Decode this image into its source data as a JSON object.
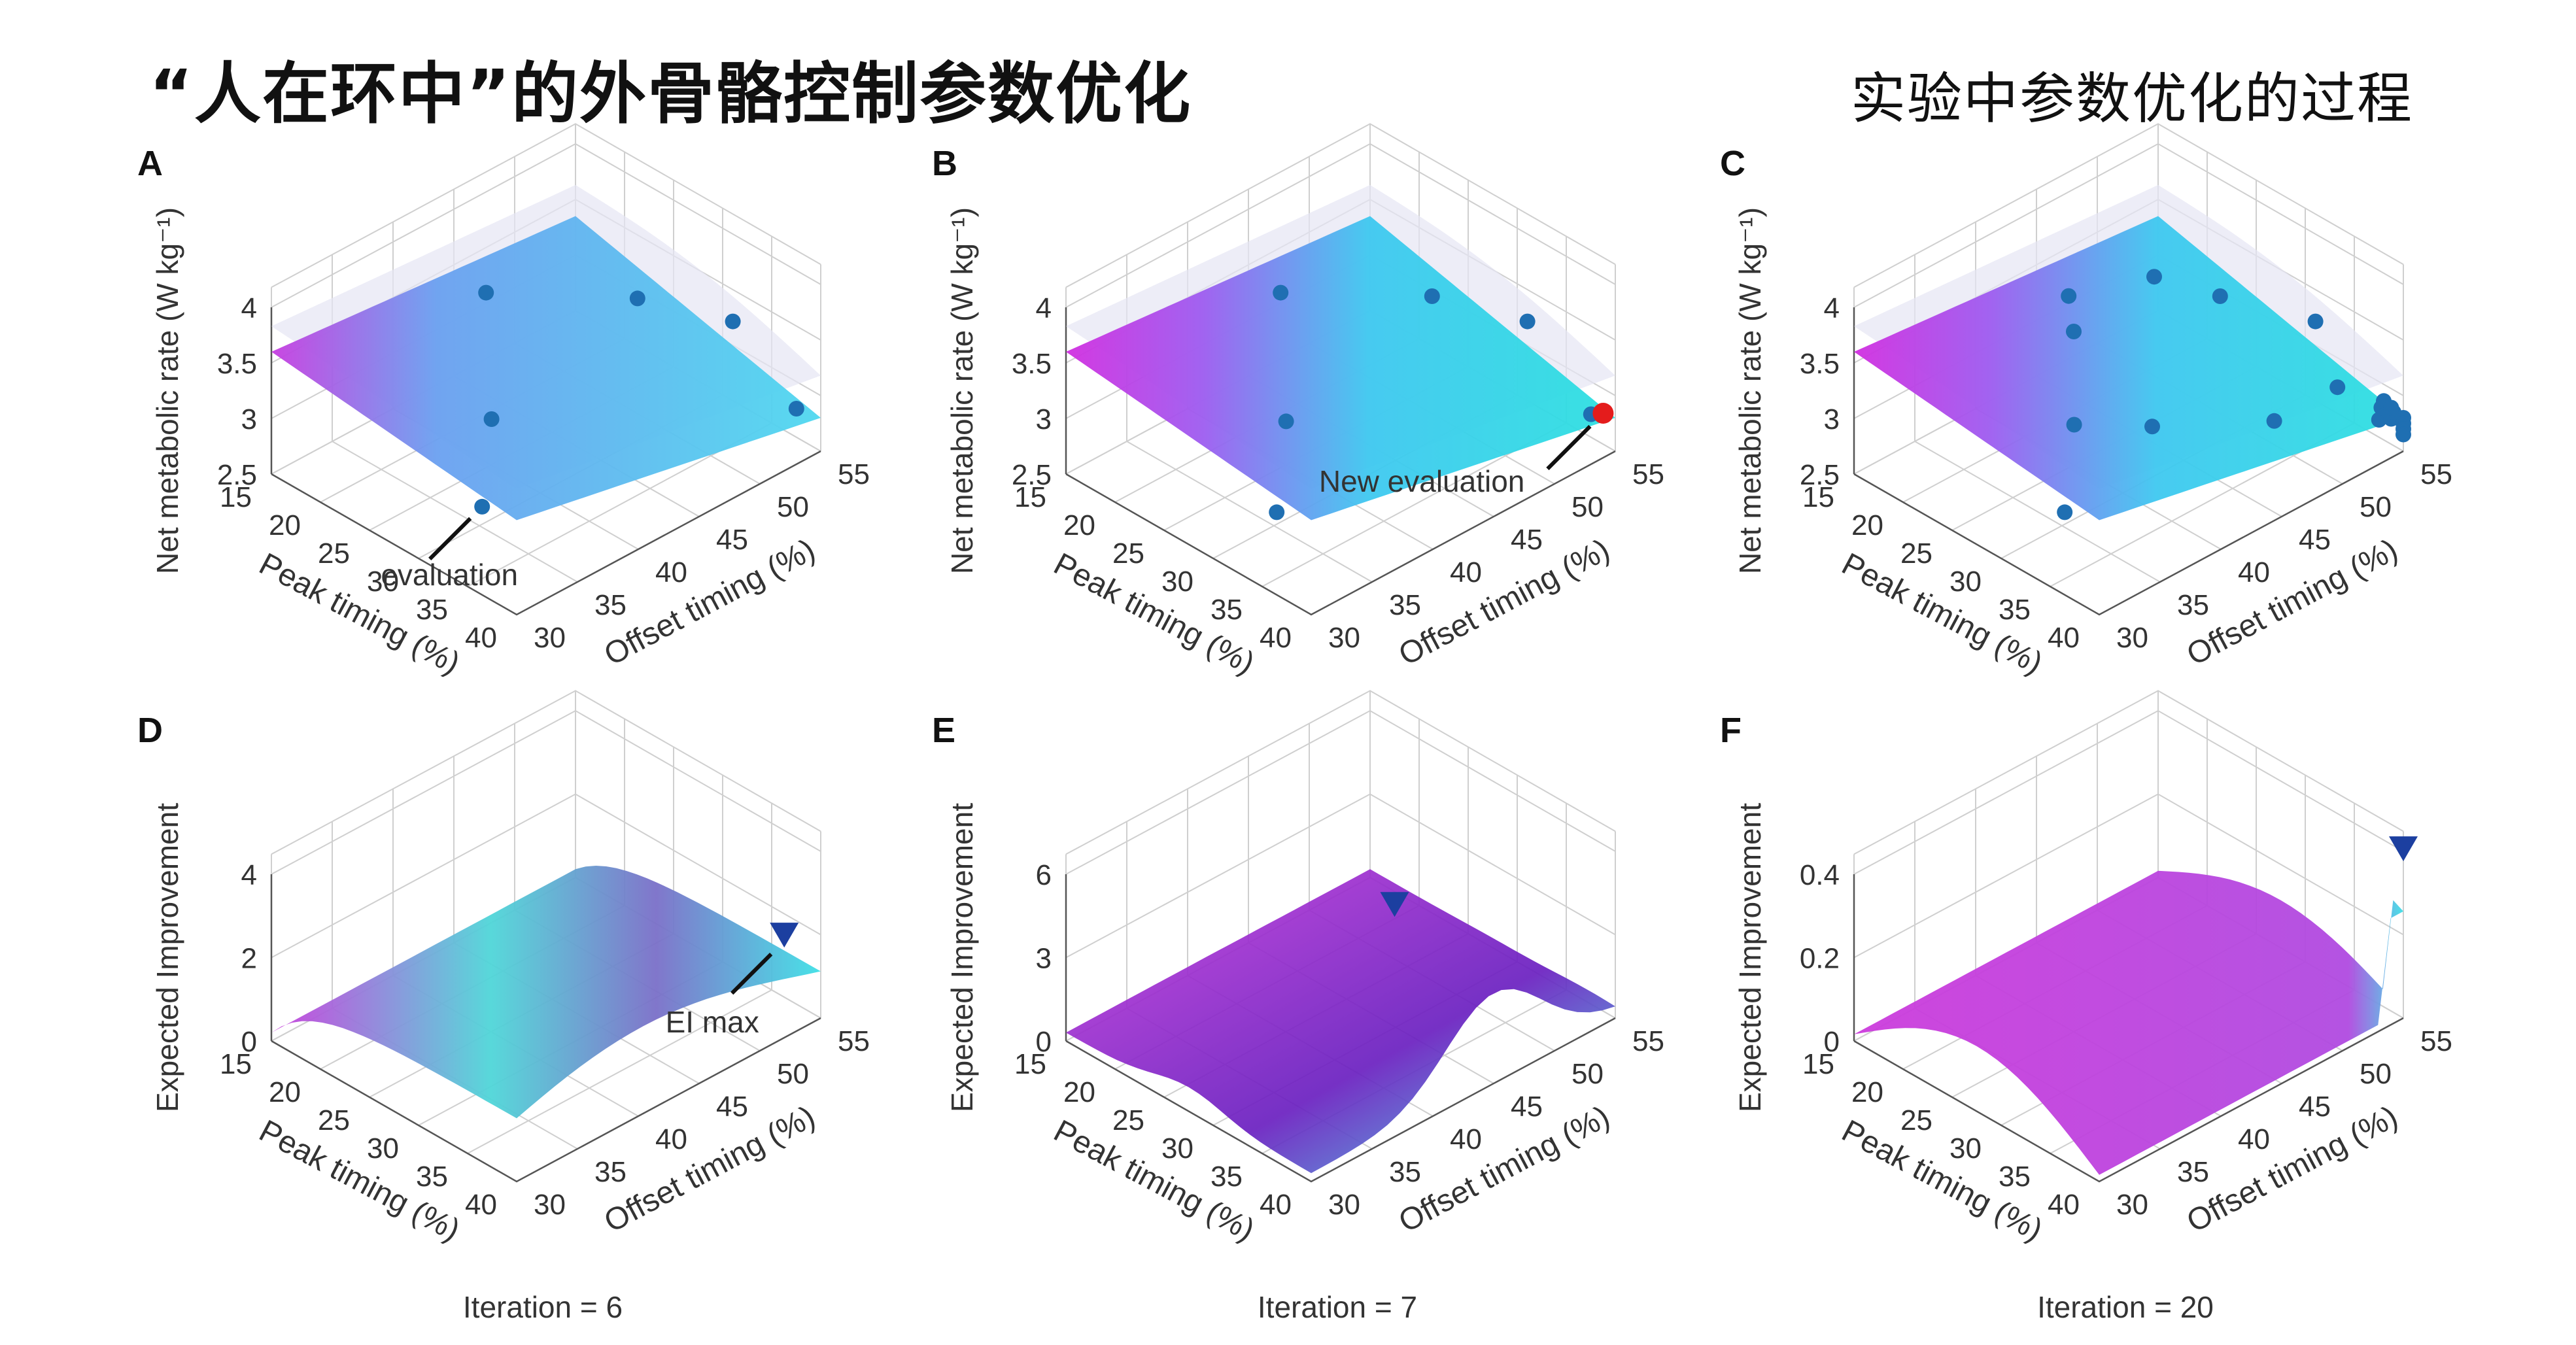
{
  "title": "“人在环中”的外骨骼控制参数优化",
  "subtitle": "实验中参数优化的过程",
  "chart_data": [
    {
      "panel": "A",
      "type": "surface3d",
      "ylabel": "Net metabolic rate (W kg⁻¹)",
      "zticks": [
        "4",
        "3.5",
        "3",
        "2.5"
      ],
      "zlim": [
        2.5,
        4
      ],
      "xlabel": "Peak timing (%)",
      "xticks": [
        "15",
        "20",
        "25",
        "30",
        "35",
        "40"
      ],
      "xlim": [
        15,
        40
      ],
      "ylabel2": "Offset timing (%)",
      "yticks": [
        "30",
        "35",
        "40",
        "45",
        "50",
        "55"
      ],
      "ylim": [
        30,
        55
      ],
      "points": [
        {
          "peak": 22,
          "offset": 42,
          "rate": 3.78
        },
        {
          "peak": 30,
          "offset": 36,
          "rate": 3.4
        },
        {
          "peak": 30,
          "offset": 48,
          "rate": 3.78
        },
        {
          "peak": 36,
          "offset": 51,
          "rate": 3.7
        },
        {
          "peak": 34,
          "offset": 32,
          "rate": 3.05
        },
        {
          "peak": 40,
          "offset": 53,
          "rate": 3.0
        }
      ],
      "annotation": "evaluation"
    },
    {
      "panel": "B",
      "type": "surface3d",
      "ylabel": "Net metabolic rate (W kg⁻¹)",
      "zticks": [
        "4",
        "3.5",
        "3",
        "2.5"
      ],
      "zlim": [
        2.5,
        4
      ],
      "xlabel": "Peak timing (%)",
      "xticks": [
        "15",
        "20",
        "25",
        "30",
        "35",
        "40"
      ],
      "xlim": [
        15,
        40
      ],
      "ylabel2": "Offset timing (%)",
      "yticks": [
        "30",
        "35",
        "40",
        "45",
        "50",
        "55"
      ],
      "ylim": [
        30,
        55
      ],
      "points": [
        {
          "peak": 22,
          "offset": 42,
          "rate": 3.78
        },
        {
          "peak": 30,
          "offset": 36,
          "rate": 3.38
        },
        {
          "peak": 30,
          "offset": 48,
          "rate": 3.8
        },
        {
          "peak": 36,
          "offset": 51,
          "rate": 3.7
        },
        {
          "peak": 34,
          "offset": 32,
          "rate": 3.0
        },
        {
          "peak": 40,
          "offset": 53,
          "rate": 2.95
        }
      ],
      "new_point": {
        "peak": 40,
        "offset": 54,
        "rate": 2.9
      },
      "annotation": "New evaluation"
    },
    {
      "panel": "C",
      "type": "surface3d",
      "ylabel": "Net metabolic rate (W kg⁻¹)",
      "zticks": [
        "4",
        "3.5",
        "3",
        "2.5"
      ],
      "zlim": [
        2.5,
        4
      ],
      "xlabel": "Peak timing (%)",
      "xticks": [
        "15",
        "20",
        "25",
        "30",
        "35",
        "40"
      ],
      "xlim": [
        15,
        40
      ],
      "ylabel2": "Offset timing (%)",
      "yticks": [
        "30",
        "35",
        "40",
        "45",
        "50",
        "55"
      ],
      "ylim": [
        30,
        55
      ],
      "points_count": 20
    },
    {
      "panel": "D",
      "type": "surface3d",
      "ylabel": "Expected Improvement",
      "zticks": [
        "4",
        "2",
        "0"
      ],
      "zlim": [
        0,
        4
      ],
      "xlabel": "Peak timing (%)",
      "xticks": [
        "15",
        "20",
        "25",
        "30",
        "35",
        "40"
      ],
      "xlim": [
        15,
        40
      ],
      "ylabel2": "Offset timing (%)",
      "yticks": [
        "30",
        "35",
        "40",
        "45",
        "50",
        "55"
      ],
      "ylim": [
        30,
        55
      ],
      "annotation": "EI max",
      "caption": "Iteration = 6"
    },
    {
      "panel": "E",
      "type": "surface3d",
      "ylabel": "Expected Improvement",
      "zticks": [
        "6",
        "3",
        "0"
      ],
      "zlim": [
        0,
        6
      ],
      "xlabel": "Peak timing (%)",
      "xticks": [
        "15",
        "20",
        "25",
        "30",
        "35",
        "40"
      ],
      "xlim": [
        15,
        40
      ],
      "ylabel2": "Offset timing (%)",
      "yticks": [
        "30",
        "35",
        "40",
        "45",
        "50",
        "55"
      ],
      "ylim": [
        30,
        55
      ],
      "caption": "Iteration = 7"
    },
    {
      "panel": "F",
      "type": "surface3d",
      "ylabel": "Expected Improvement",
      "zticks": [
        "0.4",
        "0.2",
        "0"
      ],
      "zlim": [
        0,
        0.4
      ],
      "xlabel": "Peak timing (%)",
      "xticks": [
        "15",
        "20",
        "25",
        "30",
        "35",
        "40"
      ],
      "xlim": [
        15,
        40
      ],
      "ylabel2": "Offset timing (%)",
      "yticks": [
        "30",
        "35",
        "40",
        "45",
        "50",
        "55"
      ],
      "ylim": [
        30,
        55
      ],
      "caption": "Iteration = 20"
    }
  ],
  "colors": {
    "magenta": "#c83ddc",
    "cyan": "#3fe0e6",
    "blue": "#2a7fd6",
    "point": "#1f6fb2",
    "red": "#e41c1c",
    "marker": "#1c3fa0",
    "grid": "#cfcfcf"
  }
}
